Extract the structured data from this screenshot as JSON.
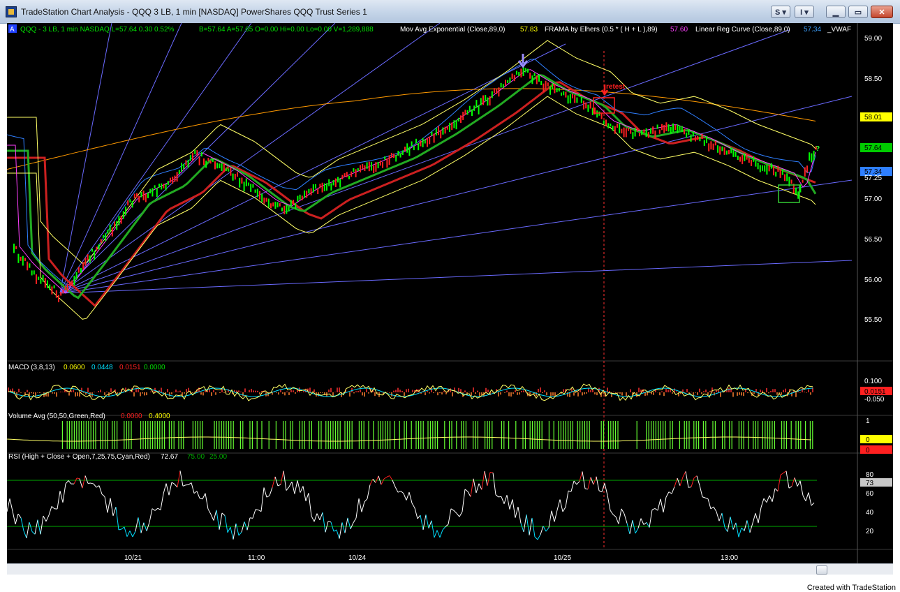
{
  "window": {
    "title": "TradeStation Chart Analysis - QQQ 3 LB, 1 min [NASDAQ] PowerShares QQQ Trust Series 1",
    "button_s": "S",
    "button_i": "I",
    "footer": "Created with TradeStation"
  },
  "header": {
    "symbol_badge": "A",
    "symbol_info": "QQQ - 3 LB, 1 min  NASDAQ  L=57.64  0.30  0.52%",
    "quote_info": "B=57.64  A=57.65  O=0.00  Hi=0.00  Lo=0.00  V=1,289,888",
    "ma_label": "Mov Avg Exponential (Close,89,0)",
    "ma_value": "57.83",
    "frama_label": "FRAMA by Elhers (0.5 * ( H + L ),89)",
    "frama_value": "57.60",
    "lrc_label": "Linear Reg Curve (Close,89,0)",
    "lrc_value": "57.34",
    "vwap_label": "_VWAF"
  },
  "annotations": {
    "retest": "retest",
    "question": "?"
  },
  "price_axis": {
    "ticks": [
      "59.00",
      "58.50",
      "58.01",
      "57.64",
      "57.34",
      "57.25",
      "57.00",
      "56.50",
      "56.00",
      "55.50"
    ],
    "flags": [
      {
        "text": "58.01",
        "color": "#ffff00",
        "text_color": "#000000"
      },
      {
        "text": "57.64",
        "color": "#00cc00",
        "text_color": "#000000"
      },
      {
        "text": "57.34",
        "color": "#2f7fff",
        "text_color": "#000000"
      }
    ]
  },
  "macd": {
    "label": "MACD (3,8,13)",
    "v1": "0.0600",
    "v2": "0.0448",
    "v3": "0.0151",
    "v4": "0.0000",
    "ticks": [
      "0.100",
      "0.0151",
      "-0.050"
    ]
  },
  "volume": {
    "label": "Volume Avg (50,50,Green,Red)",
    "v1": "0.0000",
    "v2": "0.4000",
    "ticks": [
      "1",
      "0",
      "0"
    ]
  },
  "rsi": {
    "label": "RSI (High + Close + Open,7,25,75,Cyan,Red)",
    "v1": "72.67",
    "v2": "75.00",
    "v3": "25.00",
    "ticks": [
      "80",
      "73",
      "60",
      "40",
      "20"
    ],
    "current": "73"
  },
  "time_axis": {
    "labels": [
      "10/21",
      "11:00",
      "10/24",
      "10/25",
      "13:00"
    ]
  },
  "colors": {
    "background": "#000000",
    "up_bar": "#00ff00",
    "down_bar": "#ff2020",
    "fan": "#6a6aff",
    "ema": "#ffff66",
    "frama": "#ff40ff"
  }
}
